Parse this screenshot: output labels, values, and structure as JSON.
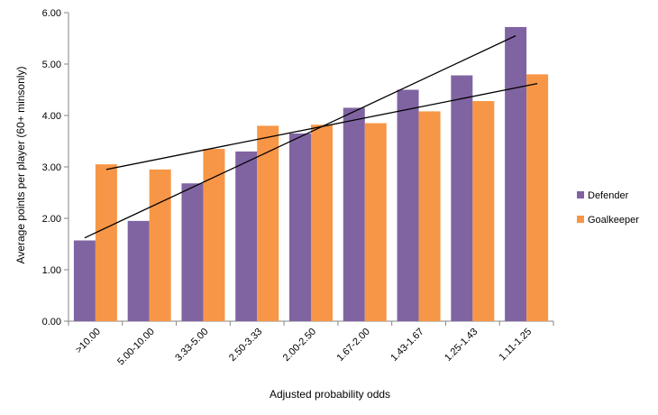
{
  "chart_data": {
    "type": "bar",
    "title": "",
    "xlabel": "Adjusted probability odds",
    "ylabel": "Average points per player (60+ minsonly)",
    "ylim": [
      0,
      6
    ],
    "yticks": [
      "0.00",
      "1.00",
      "2.00",
      "3.00",
      "4.00",
      "5.00",
      "6.00"
    ],
    "ytick_values": [
      0,
      1,
      2,
      3,
      4,
      5,
      6
    ],
    "grid": false,
    "legend_position": "right",
    "categories": [
      ">10.00",
      "5.00-10.00",
      "3.33-5.00",
      "2.50-3.33",
      "2.00-2.50",
      "1.67-2.00",
      "1.43-1.67",
      "1.25-1.43",
      "1.11-1.25"
    ],
    "series": [
      {
        "name": "Defender",
        "color": "#8064A2",
        "values": [
          1.57,
          1.95,
          2.68,
          3.3,
          3.65,
          4.15,
          4.5,
          4.78,
          5.72
        ]
      },
      {
        "name": "Goalkeeper",
        "color": "#F79646",
        "values": [
          3.05,
          2.95,
          3.35,
          3.8,
          3.82,
          3.85,
          4.08,
          4.28,
          4.8
        ]
      }
    ],
    "trendlines": [
      {
        "series": "Defender",
        "start": 1.62,
        "end": 5.55
      },
      {
        "series": "Goalkeeper",
        "start": 2.95,
        "end": 4.62
      }
    ]
  }
}
